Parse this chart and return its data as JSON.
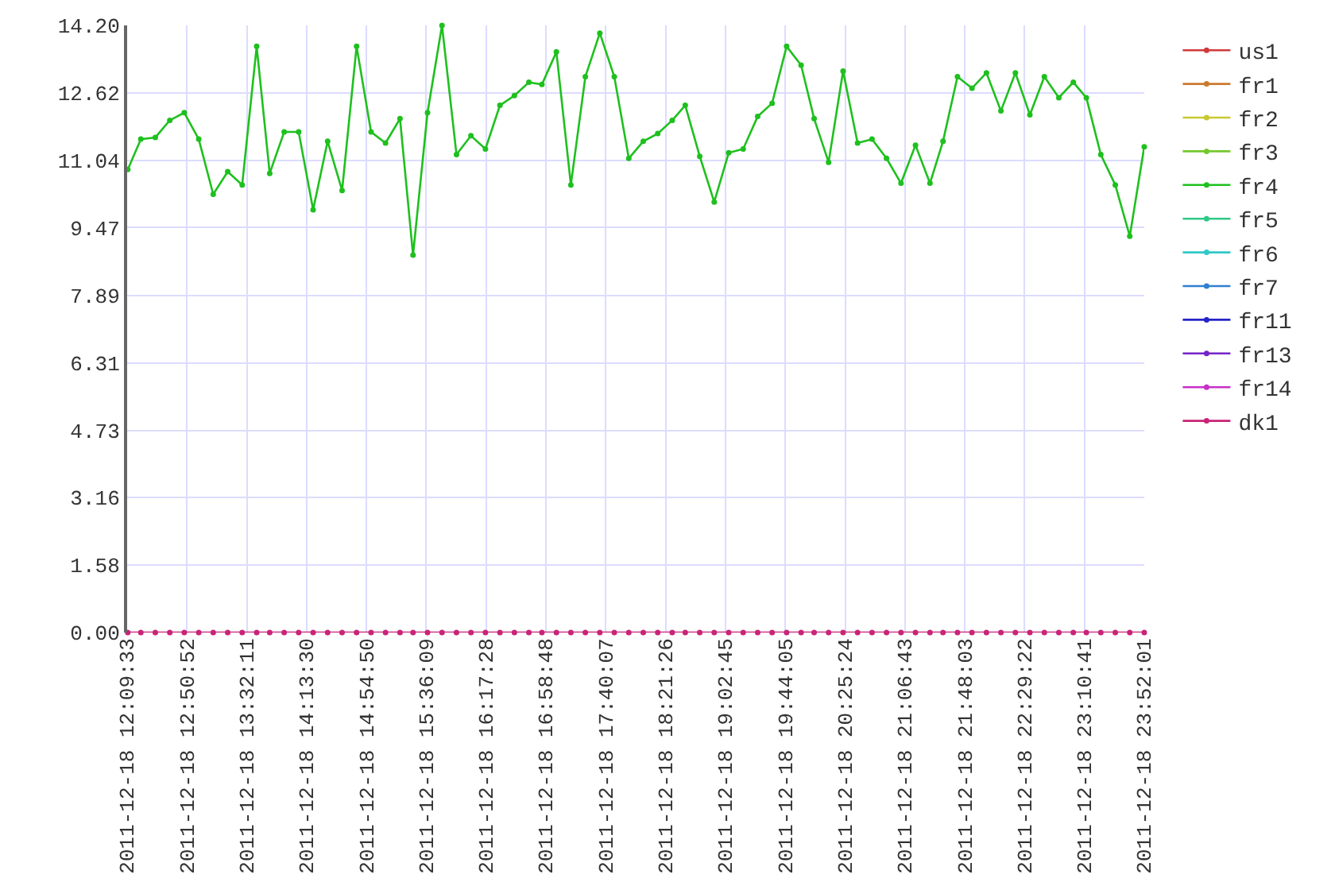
{
  "chart_data": {
    "type": "line",
    "x": [
      "2011-12-18T12:10",
      "2011-12-18T12:19",
      "2011-12-18T12:29",
      "2011-12-18T12:39",
      "2011-12-18T12:49",
      "2011-12-18T12:59",
      "2011-12-18T13:09",
      "2011-12-18T13:19",
      "2011-12-18T13:29",
      "2011-12-18T13:39",
      "2011-12-18T13:48",
      "2011-12-18T13:58",
      "2011-12-18T14:08",
      "2011-12-18T14:18",
      "2011-12-18T14:28",
      "2011-12-18T14:38",
      "2011-12-18T14:48",
      "2011-12-18T14:58",
      "2011-12-18T15:08",
      "2011-12-18T15:18",
      "2011-12-18T15:27",
      "2011-12-18T15:37",
      "2011-12-18T15:47",
      "2011-12-18T15:57",
      "2011-12-18T16:07",
      "2011-12-18T16:17",
      "2011-12-18T16:27",
      "2011-12-18T16:37",
      "2011-12-18T16:47",
      "2011-12-18T16:56",
      "2011-12-18T17:06",
      "2011-12-18T17:16",
      "2011-12-18T17:26",
      "2011-12-18T17:36",
      "2011-12-18T17:46",
      "2011-12-18T17:56",
      "2011-12-18T18:06",
      "2011-12-18T18:16",
      "2011-12-18T18:26",
      "2011-12-18T18:35",
      "2011-12-18T18:45",
      "2011-12-18T18:55",
      "2011-12-18T19:05",
      "2011-12-18T19:15",
      "2011-12-18T19:25",
      "2011-12-18T19:35",
      "2011-12-18T19:45",
      "2011-12-18T19:55",
      "2011-12-18T20:04",
      "2011-12-18T20:14",
      "2011-12-18T20:24",
      "2011-12-18T20:34",
      "2011-12-18T20:44",
      "2011-12-18T20:54",
      "2011-12-18T21:04",
      "2011-12-18T21:14",
      "2011-12-18T21:24",
      "2011-12-18T21:33",
      "2011-12-18T21:43",
      "2011-12-18T21:53",
      "2011-12-18T22:03",
      "2011-12-18T22:13",
      "2011-12-18T22:23",
      "2011-12-18T22:33",
      "2011-12-18T22:43",
      "2011-12-18T22:53",
      "2011-12-18T23:03",
      "2011-12-18T23:12",
      "2011-12-18T23:22",
      "2011-12-18T23:32",
      "2011-12-18T23:42",
      "2011-12-18T23:52"
    ],
    "series": [
      {
        "name": "us1",
        "color": "#d03a3a",
        "values": [
          null,
          null,
          null,
          null,
          null,
          null,
          null,
          null,
          null,
          null,
          null,
          null,
          null,
          null,
          null,
          null,
          null,
          null,
          null,
          null,
          null,
          null,
          null,
          null,
          null,
          null,
          null,
          null,
          null,
          null,
          null,
          null,
          null,
          null,
          null,
          null,
          null,
          null,
          null,
          null,
          null,
          null,
          null,
          null,
          null,
          null,
          null,
          null,
          null,
          null,
          null,
          null,
          null,
          null,
          null,
          null,
          null,
          null,
          null,
          null,
          null,
          null,
          null,
          null,
          null,
          null,
          null,
          null,
          null,
          null,
          null,
          null
        ]
      },
      {
        "name": "fr1",
        "color": "#cc7a2e",
        "values": [
          null,
          null,
          null,
          null,
          null,
          null,
          null,
          null,
          null,
          null,
          null,
          null,
          null,
          null,
          null,
          null,
          null,
          null,
          null,
          null,
          null,
          null,
          null,
          null,
          null,
          null,
          null,
          null,
          null,
          null,
          null,
          null,
          null,
          null,
          null,
          null,
          null,
          null,
          null,
          null,
          null,
          null,
          null,
          null,
          null,
          null,
          null,
          null,
          null,
          null,
          null,
          null,
          null,
          null,
          null,
          null,
          null,
          null,
          null,
          null,
          null,
          null,
          null,
          null,
          null,
          null,
          null,
          null,
          null,
          null,
          null,
          null
        ]
      },
      {
        "name": "fr2",
        "color": "#c8c830",
        "values": [
          null,
          null,
          null,
          null,
          null,
          null,
          null,
          null,
          null,
          null,
          null,
          null,
          null,
          null,
          null,
          null,
          null,
          null,
          null,
          null,
          null,
          null,
          null,
          null,
          null,
          null,
          null,
          null,
          null,
          null,
          null,
          null,
          null,
          null,
          null,
          null,
          null,
          null,
          null,
          null,
          null,
          null,
          null,
          null,
          null,
          null,
          null,
          null,
          null,
          null,
          null,
          null,
          null,
          null,
          null,
          null,
          null,
          null,
          null,
          null,
          null,
          null,
          null,
          null,
          null,
          null,
          null,
          null,
          null,
          null,
          null,
          null
        ]
      },
      {
        "name": "fr3",
        "color": "#74c830",
        "values": [
          null,
          null,
          null,
          null,
          null,
          null,
          null,
          null,
          null,
          null,
          null,
          null,
          null,
          null,
          null,
          null,
          null,
          null,
          null,
          null,
          null,
          null,
          null,
          null,
          null,
          null,
          null,
          null,
          null,
          null,
          null,
          null,
          null,
          null,
          null,
          null,
          null,
          null,
          null,
          null,
          null,
          null,
          null,
          null,
          null,
          null,
          null,
          null,
          null,
          null,
          null,
          null,
          null,
          null,
          null,
          null,
          null,
          null,
          null,
          null,
          null,
          null,
          null,
          null,
          null,
          null,
          null,
          null,
          null,
          null,
          null,
          null
        ]
      },
      {
        "name": "fr4",
        "color": "#1ec01e",
        "values": [
          10.83,
          11.54,
          11.58,
          11.98,
          12.16,
          11.54,
          10.25,
          10.78,
          10.47,
          13.71,
          10.74,
          11.71,
          11.71,
          9.89,
          11.49,
          10.34,
          13.71,
          11.71,
          11.45,
          12.02,
          8.83,
          12.16,
          14.2,
          11.18,
          11.62,
          11.31,
          12.33,
          12.56,
          12.87,
          12.82,
          13.58,
          10.47,
          13.0,
          14.02,
          13.0,
          11.09,
          11.49,
          11.67,
          11.98,
          12.33,
          11.14,
          10.07,
          11.22,
          11.31,
          12.07,
          12.38,
          13.71,
          13.27,
          12.02,
          11.0,
          13.13,
          11.45,
          11.54,
          11.09,
          10.51,
          11.4,
          10.51,
          11.49,
          13.0,
          12.73,
          13.09,
          12.2,
          13.09,
          12.11,
          13.0,
          12.51,
          12.87,
          12.51,
          11.18,
          10.47,
          9.27,
          11.36
        ]
      },
      {
        "name": "fr5",
        "color": "#30c888",
        "values": [
          null,
          null,
          null,
          null,
          null,
          null,
          null,
          null,
          null,
          null,
          null,
          null,
          null,
          null,
          null,
          null,
          null,
          null,
          null,
          null,
          null,
          null,
          null,
          null,
          null,
          null,
          null,
          null,
          null,
          null,
          null,
          null,
          null,
          null,
          null,
          null,
          null,
          null,
          null,
          null,
          null,
          null,
          null,
          null,
          null,
          null,
          null,
          null,
          null,
          null,
          null,
          null,
          null,
          null,
          null,
          null,
          null,
          null,
          null,
          null,
          null,
          null,
          null,
          null,
          null,
          null,
          null,
          null,
          null,
          null,
          null,
          null
        ]
      },
      {
        "name": "fr6",
        "color": "#30c8c8",
        "values": [
          null,
          null,
          null,
          null,
          null,
          null,
          null,
          null,
          null,
          null,
          null,
          null,
          null,
          null,
          null,
          null,
          null,
          null,
          null,
          null,
          null,
          null,
          null,
          null,
          null,
          null,
          null,
          null,
          null,
          null,
          null,
          null,
          null,
          null,
          null,
          null,
          null,
          null,
          null,
          null,
          null,
          null,
          null,
          null,
          null,
          null,
          null,
          null,
          null,
          null,
          null,
          null,
          null,
          null,
          null,
          null,
          null,
          null,
          null,
          null,
          null,
          null,
          null,
          null,
          null,
          null,
          null,
          null,
          null,
          null,
          null,
          null
        ]
      },
      {
        "name": "fr7",
        "color": "#3080d0",
        "values": [
          null,
          null,
          null,
          null,
          null,
          null,
          null,
          null,
          null,
          null,
          null,
          null,
          null,
          null,
          null,
          null,
          null,
          null,
          null,
          null,
          null,
          null,
          null,
          null,
          null,
          null,
          null,
          null,
          null,
          null,
          null,
          null,
          null,
          null,
          null,
          null,
          null,
          null,
          null,
          null,
          null,
          null,
          null,
          null,
          null,
          null,
          null,
          null,
          null,
          null,
          null,
          null,
          null,
          null,
          null,
          null,
          null,
          null,
          null,
          null,
          null,
          null,
          null,
          null,
          null,
          null,
          null,
          null,
          null,
          null,
          null,
          null
        ]
      },
      {
        "name": "fr11",
        "color": "#2424c8",
        "values": [
          null,
          null,
          null,
          null,
          null,
          null,
          null,
          null,
          null,
          null,
          null,
          null,
          null,
          null,
          null,
          null,
          null,
          null,
          null,
          null,
          null,
          null,
          null,
          null,
          null,
          null,
          null,
          null,
          null,
          null,
          null,
          null,
          null,
          null,
          null,
          null,
          null,
          null,
          null,
          null,
          null,
          null,
          null,
          null,
          null,
          null,
          null,
          null,
          null,
          null,
          null,
          null,
          null,
          null,
          null,
          null,
          null,
          null,
          null,
          null,
          null,
          null,
          null,
          null,
          null,
          null,
          null,
          null,
          null,
          null,
          null,
          null
        ]
      },
      {
        "name": "fr13",
        "color": "#7424c8",
        "values": [
          null,
          null,
          null,
          null,
          null,
          null,
          null,
          null,
          null,
          null,
          null,
          null,
          null,
          null,
          null,
          null,
          null,
          null,
          null,
          null,
          null,
          null,
          null,
          null,
          null,
          null,
          null,
          null,
          null,
          null,
          null,
          null,
          null,
          null,
          null,
          null,
          null,
          null,
          null,
          null,
          null,
          null,
          null,
          null,
          null,
          null,
          null,
          null,
          null,
          null,
          null,
          null,
          null,
          null,
          null,
          null,
          null,
          null,
          null,
          null,
          null,
          null,
          null,
          null,
          null,
          null,
          null,
          null,
          null,
          null,
          null,
          null
        ]
      },
      {
        "name": "fr14",
        "color": "#c830c8",
        "values": [
          null,
          null,
          null,
          null,
          null,
          null,
          null,
          null,
          null,
          null,
          null,
          null,
          null,
          null,
          null,
          null,
          null,
          null,
          null,
          null,
          null,
          null,
          null,
          null,
          null,
          null,
          null,
          null,
          null,
          null,
          null,
          null,
          null,
          null,
          null,
          null,
          null,
          null,
          null,
          null,
          null,
          null,
          null,
          null,
          null,
          null,
          null,
          null,
          null,
          null,
          null,
          null,
          null,
          null,
          null,
          null,
          null,
          null,
          null,
          null,
          null,
          null,
          null,
          null,
          null,
          null,
          null,
          null,
          null,
          null,
          null,
          null
        ]
      },
      {
        "name": "dk1",
        "color": "#c82478",
        "values": [
          0,
          0,
          0,
          0,
          0,
          0,
          0,
          0,
          0,
          0,
          0,
          0,
          0,
          0,
          0,
          0,
          0,
          0,
          0,
          0,
          0,
          0,
          0,
          0,
          0,
          0,
          0,
          0,
          0,
          0,
          0,
          0,
          0,
          0,
          0,
          0,
          0,
          0,
          0,
          0,
          0,
          0,
          0,
          0,
          0,
          0,
          0,
          0,
          0,
          0,
          0,
          0,
          0,
          0,
          0,
          0,
          0,
          0,
          0,
          0,
          0,
          0,
          0,
          0,
          0,
          0,
          0,
          0,
          0,
          0,
          0,
          0
        ]
      }
    ],
    "xlim": [
      "2011-12-18T12:09:33",
      "2011-12-18T23:52:01"
    ],
    "xticks": [
      {
        "value": "2011-12-18T12:09:33",
        "label": "2011-12-18 12:09:33"
      },
      {
        "value": "2011-12-18T12:50:52",
        "label": "2011-12-18 12:50:52"
      },
      {
        "value": "2011-12-18T13:32:11",
        "label": "2011-12-18 13:32:11"
      },
      {
        "value": "2011-12-18T14:13:30",
        "label": "2011-12-18 14:13:30"
      },
      {
        "value": "2011-12-18T14:54:50",
        "label": "2011-12-18 14:54:50"
      },
      {
        "value": "2011-12-18T15:36:09",
        "label": "2011-12-18 15:36:09"
      },
      {
        "value": "2011-12-18T16:17:28",
        "label": "2011-12-18 16:17:28"
      },
      {
        "value": "2011-12-18T16:58:48",
        "label": "2011-12-18 16:58:48"
      },
      {
        "value": "2011-12-18T17:40:07",
        "label": "2011-12-18 17:40:07"
      },
      {
        "value": "2011-12-18T18:21:26",
        "label": "2011-12-18 18:21:26"
      },
      {
        "value": "2011-12-18T19:02:45",
        "label": "2011-12-18 19:02:45"
      },
      {
        "value": "2011-12-18T19:44:05",
        "label": "2011-12-18 19:44:05"
      },
      {
        "value": "2011-12-18T20:25:24",
        "label": "2011-12-18 20:25:24"
      },
      {
        "value": "2011-12-18T21:06:43",
        "label": "2011-12-18 21:06:43"
      },
      {
        "value": "2011-12-18T21:48:03",
        "label": "2011-12-18 21:48:03"
      },
      {
        "value": "2011-12-18T22:29:22",
        "label": "2011-12-18 22:29:22"
      },
      {
        "value": "2011-12-18T23:10:41",
        "label": "2011-12-18 23:10:41"
      },
      {
        "value": "2011-12-18T23:52:01",
        "label": "2011-12-18 23:52:01"
      }
    ],
    "ylim": [
      0,
      14.2
    ],
    "yticks": [
      {
        "value": 0,
        "label": "0.00"
      },
      1.58,
      3.16,
      4.73,
      6.31,
      7.89,
      9.47,
      11.04,
      12.62,
      {
        "value": 14.2,
        "label": "14.20"
      }
    ],
    "grid": true,
    "legend": "top right",
    "marker": "circle",
    "line_style": "solid"
  }
}
